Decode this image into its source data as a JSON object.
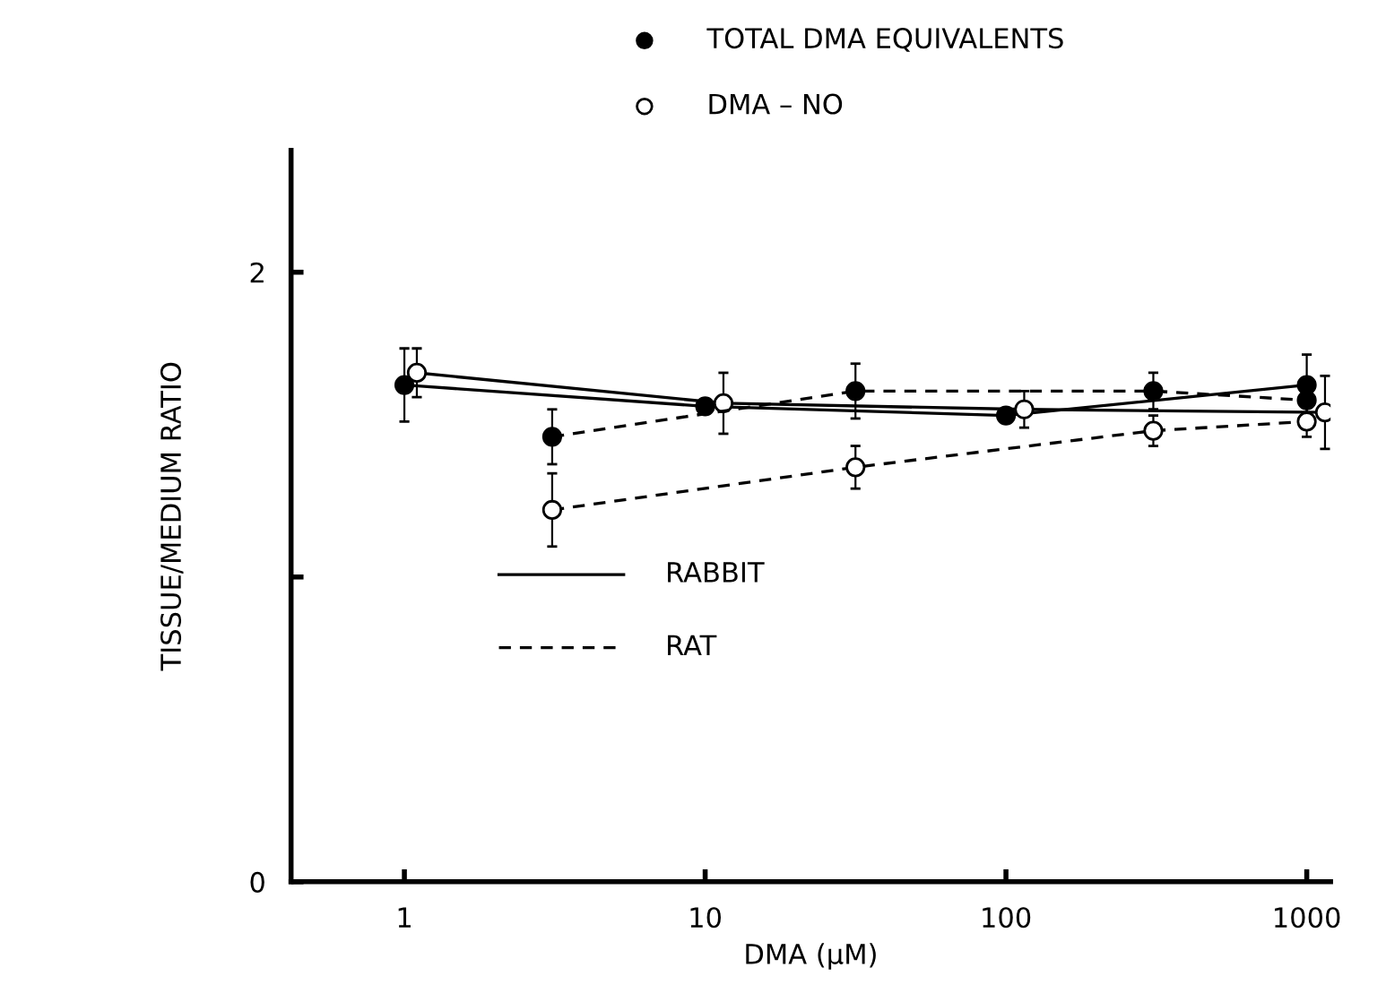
{
  "chart_data": {
    "type": "line",
    "xlabel": "DMA (µM)",
    "ylabel": "TISSUE/MEDIUM RATIO",
    "log": "x",
    "xlim": [
      0.42,
      1200
    ],
    "xticks": [
      1,
      10,
      100,
      1000
    ],
    "ylim": [
      0,
      2.4
    ],
    "yticks": [
      0,
      {
        "value": 1,
        "label": null
      },
      2
    ],
    "marker": "circle",
    "annotations": [
      "TOTAL DMA EQUIVALENTS",
      "DMA – NO",
      "RABBIT",
      "RAT"
    ],
    "series": [
      {
        "color": "#000000",
        "line_style": "solid",
        "x": [
          1,
          10,
          100,
          1000
        ],
        "values": [
          1.63,
          1.56,
          1.53,
          1.63
        ],
        "errors": [
          0.12,
          null,
          null,
          0.1
        ]
      },
      {
        "color": "#ffffff",
        "line_style": "solid",
        "x": [
          1.1,
          11.5,
          115,
          1150
        ],
        "values": [
          1.67,
          1.57,
          1.55,
          1.54
        ],
        "errors": [
          0.08,
          0.1,
          0.06,
          0.12
        ]
      },
      {
        "color": "#000000",
        "line_style": "dashed",
        "x": [
          3.1,
          31.6,
          309,
          1000
        ],
        "values": [
          1.46,
          1.61,
          1.61,
          1.58
        ],
        "errors": [
          0.09,
          0.09,
          0.06,
          null
        ]
      },
      {
        "color": "#ffffff",
        "line_style": "dashed",
        "x": [
          3.1,
          31.6,
          309,
          1000
        ],
        "values": [
          1.22,
          1.36,
          1.48,
          1.51
        ],
        "errors": [
          0.12,
          0.07,
          0.05,
          0.05
        ]
      }
    ]
  }
}
